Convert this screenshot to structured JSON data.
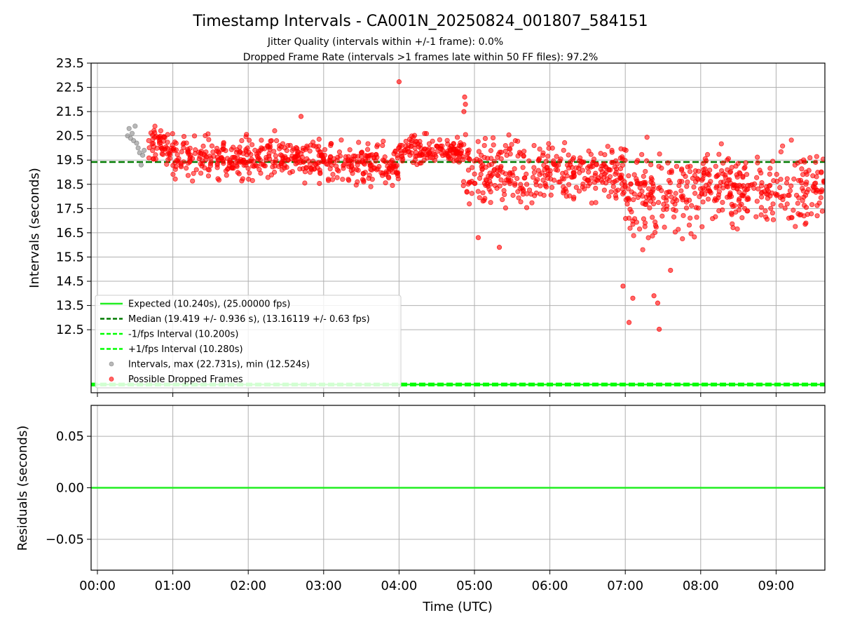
{
  "chart_data": {
    "type": "scatter",
    "title": "Timestamp Intervals - CA001N_20250824_001807_584151",
    "subtitle_lines": [
      "Jitter Quality (intervals within +/-1 frame): 0.0%",
      "Dropped Frame Rate (intervals >1 frames late within 50 FF files): 97.2%"
    ],
    "xlabel": "Time (UTC)",
    "x_ticks": [
      "00:00",
      "01:00",
      "02:00",
      "03:00",
      "04:00",
      "05:00",
      "06:00",
      "07:00",
      "08:00",
      "09:00"
    ],
    "top": {
      "ylabel": "Intervals (seconds)",
      "y_ticks": [
        "12.5",
        "13.5",
        "14.5",
        "15.5",
        "16.5",
        "17.5",
        "18.5",
        "19.5",
        "20.5",
        "21.5",
        "22.5",
        "23.5"
      ],
      "ylim": [
        9.9,
        23.5
      ],
      "grid": true,
      "legend_position": "lower-left",
      "expected_interval": 10.24,
      "median_interval": 19.419,
      "minus_interval": 10.2,
      "plus_interval": 10.28,
      "max_interval": 22.731,
      "min_interval": 12.524,
      "legend": [
        "Expected (10.240s), (25.00000 fps)",
        "Median (19.419 +/- 0.936 s), (13.16119 +/- 0.63 fps)",
        "-1/fps Interval (10.200s)",
        "+1/fps Interval (10.280s)",
        "Intervals, max (22.731s), min (12.524s)",
        "Possible Dropped Frames"
      ]
    },
    "bottom": {
      "ylabel": "Residuals (seconds)",
      "y_ticks": [
        "−0.05",
        "0.00",
        "0.05"
      ],
      "ylim": [
        -0.08,
        0.08
      ],
      "residual_value": 0.0,
      "grid": true
    },
    "xlim_hours": [
      -0.08,
      9.65
    ],
    "colors": {
      "expected": "#22ee22",
      "median": "#007a00",
      "jitter": "#00ff00",
      "normal_points": "#888888",
      "dropped_points": "#ff0000"
    },
    "series": [
      {
        "name": "Intervals, max (22.731s), min (12.524s)",
        "points": [
          [
            0.4,
            20.5
          ],
          [
            0.42,
            20.8
          ],
          [
            0.44,
            20.4
          ],
          [
            0.46,
            20.6
          ],
          [
            0.48,
            20.3
          ],
          [
            0.5,
            20.9
          ],
          [
            0.52,
            20.2
          ],
          [
            0.54,
            20.0
          ],
          [
            0.56,
            19.8
          ],
          [
            0.58,
            19.3
          ],
          [
            0.6,
            19.7
          ],
          [
            0.62,
            19.9
          ]
        ]
      },
      {
        "name": "Possible Dropped Frames",
        "summary_by_hour": [
          {
            "start": 0.65,
            "end": 1.0,
            "mean": 20.1,
            "spread": 0.5
          },
          {
            "start": 1.0,
            "end": 2.0,
            "mean": 19.6,
            "spread": 0.6
          },
          {
            "start": 2.0,
            "end": 3.0,
            "mean": 19.6,
            "spread": 0.6
          },
          {
            "start": 3.0,
            "end": 4.0,
            "mean": 19.3,
            "spread": 0.6
          },
          {
            "start": 4.0,
            "end": 4.85,
            "mean": 19.9,
            "spread": 0.4
          },
          {
            "start": 4.85,
            "end": 6.0,
            "mean": 19.0,
            "spread": 0.9
          },
          {
            "start": 6.0,
            "end": 7.0,
            "mean": 19.0,
            "spread": 0.9
          },
          {
            "start": 7.0,
            "end": 8.0,
            "mean": 18.0,
            "spread": 1.2
          },
          {
            "start": 8.0,
            "end": 9.65,
            "mean": 18.4,
            "spread": 1.0
          }
        ],
        "notable_points": [
          [
            4.0,
            22.73
          ],
          [
            4.87,
            22.1
          ],
          [
            4.88,
            21.8
          ],
          [
            4.86,
            21.5
          ],
          [
            2.7,
            21.3
          ],
          [
            7.05,
            12.8
          ],
          [
            7.45,
            12.52
          ],
          [
            7.43,
            13.6
          ],
          [
            7.38,
            13.9
          ],
          [
            7.1,
            13.8
          ],
          [
            6.97,
            14.3
          ],
          [
            5.05,
            16.3
          ],
          [
            5.33,
            15.9
          ],
          [
            7.6,
            14.95
          ]
        ]
      }
    ]
  }
}
